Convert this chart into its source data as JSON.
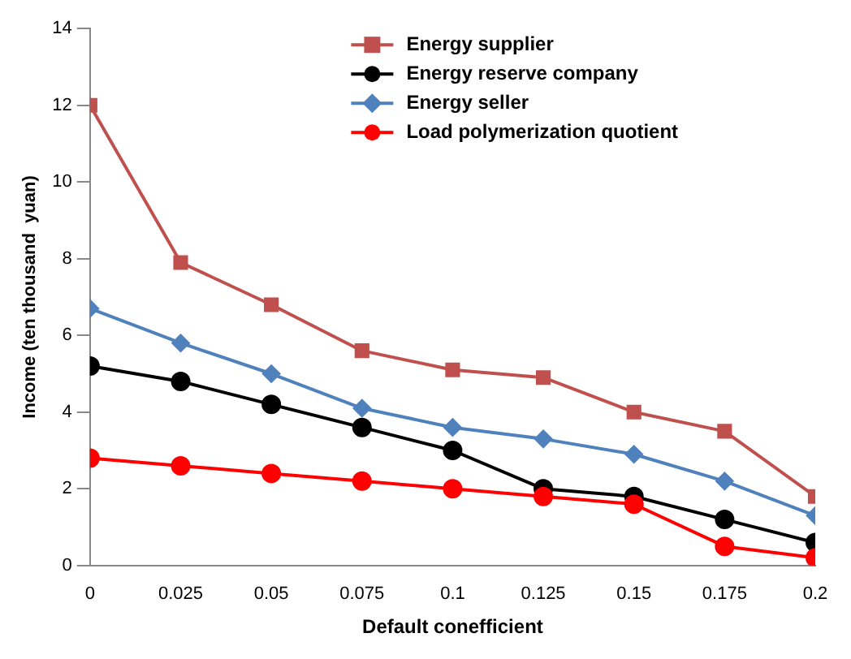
{
  "chart_data": {
    "type": "line",
    "xlabel": "Default conefficient",
    "ylabel": "Income (ten thousand  yuan)",
    "x": [
      0,
      0.025,
      0.05,
      0.075,
      0.1,
      0.125,
      0.15,
      0.175,
      0.2
    ],
    "series": [
      {
        "name": "Energy supplier",
        "color": "#c0504d",
        "marker": "square",
        "values": [
          12,
          7.9,
          6.8,
          5.6,
          5.1,
          4.9,
          4.0,
          3.5,
          1.8
        ]
      },
      {
        "name": "Energy reserve company",
        "color": "#000000",
        "marker": "circle",
        "values": [
          5.2,
          4.8,
          4.2,
          3.6,
          3.0,
          2.0,
          1.8,
          1.2,
          0.6
        ]
      },
      {
        "name": "Energy seller",
        "color": "#4f81bd",
        "marker": "diamond",
        "values": [
          6.7,
          5.8,
          5.0,
          4.1,
          3.6,
          3.3,
          2.9,
          2.2,
          1.3
        ]
      },
      {
        "name": "Load polymerization quotient",
        "color": "#ff0000",
        "marker": "circle",
        "values": [
          2.8,
          2.6,
          2.4,
          2.2,
          2.0,
          1.8,
          1.6,
          0.5,
          0.2
        ]
      }
    ],
    "xlim": [
      0,
      0.2
    ],
    "xticks": [
      0,
      0.025,
      0.05,
      0.075,
      0.1,
      0.125,
      0.15,
      0.175,
      0.2
    ],
    "ylim": [
      0,
      14
    ],
    "yticks": [
      0,
      2,
      4,
      6,
      8,
      10,
      12,
      14
    ],
    "grid": false,
    "legend": "top right",
    "line_style": "solid"
  }
}
